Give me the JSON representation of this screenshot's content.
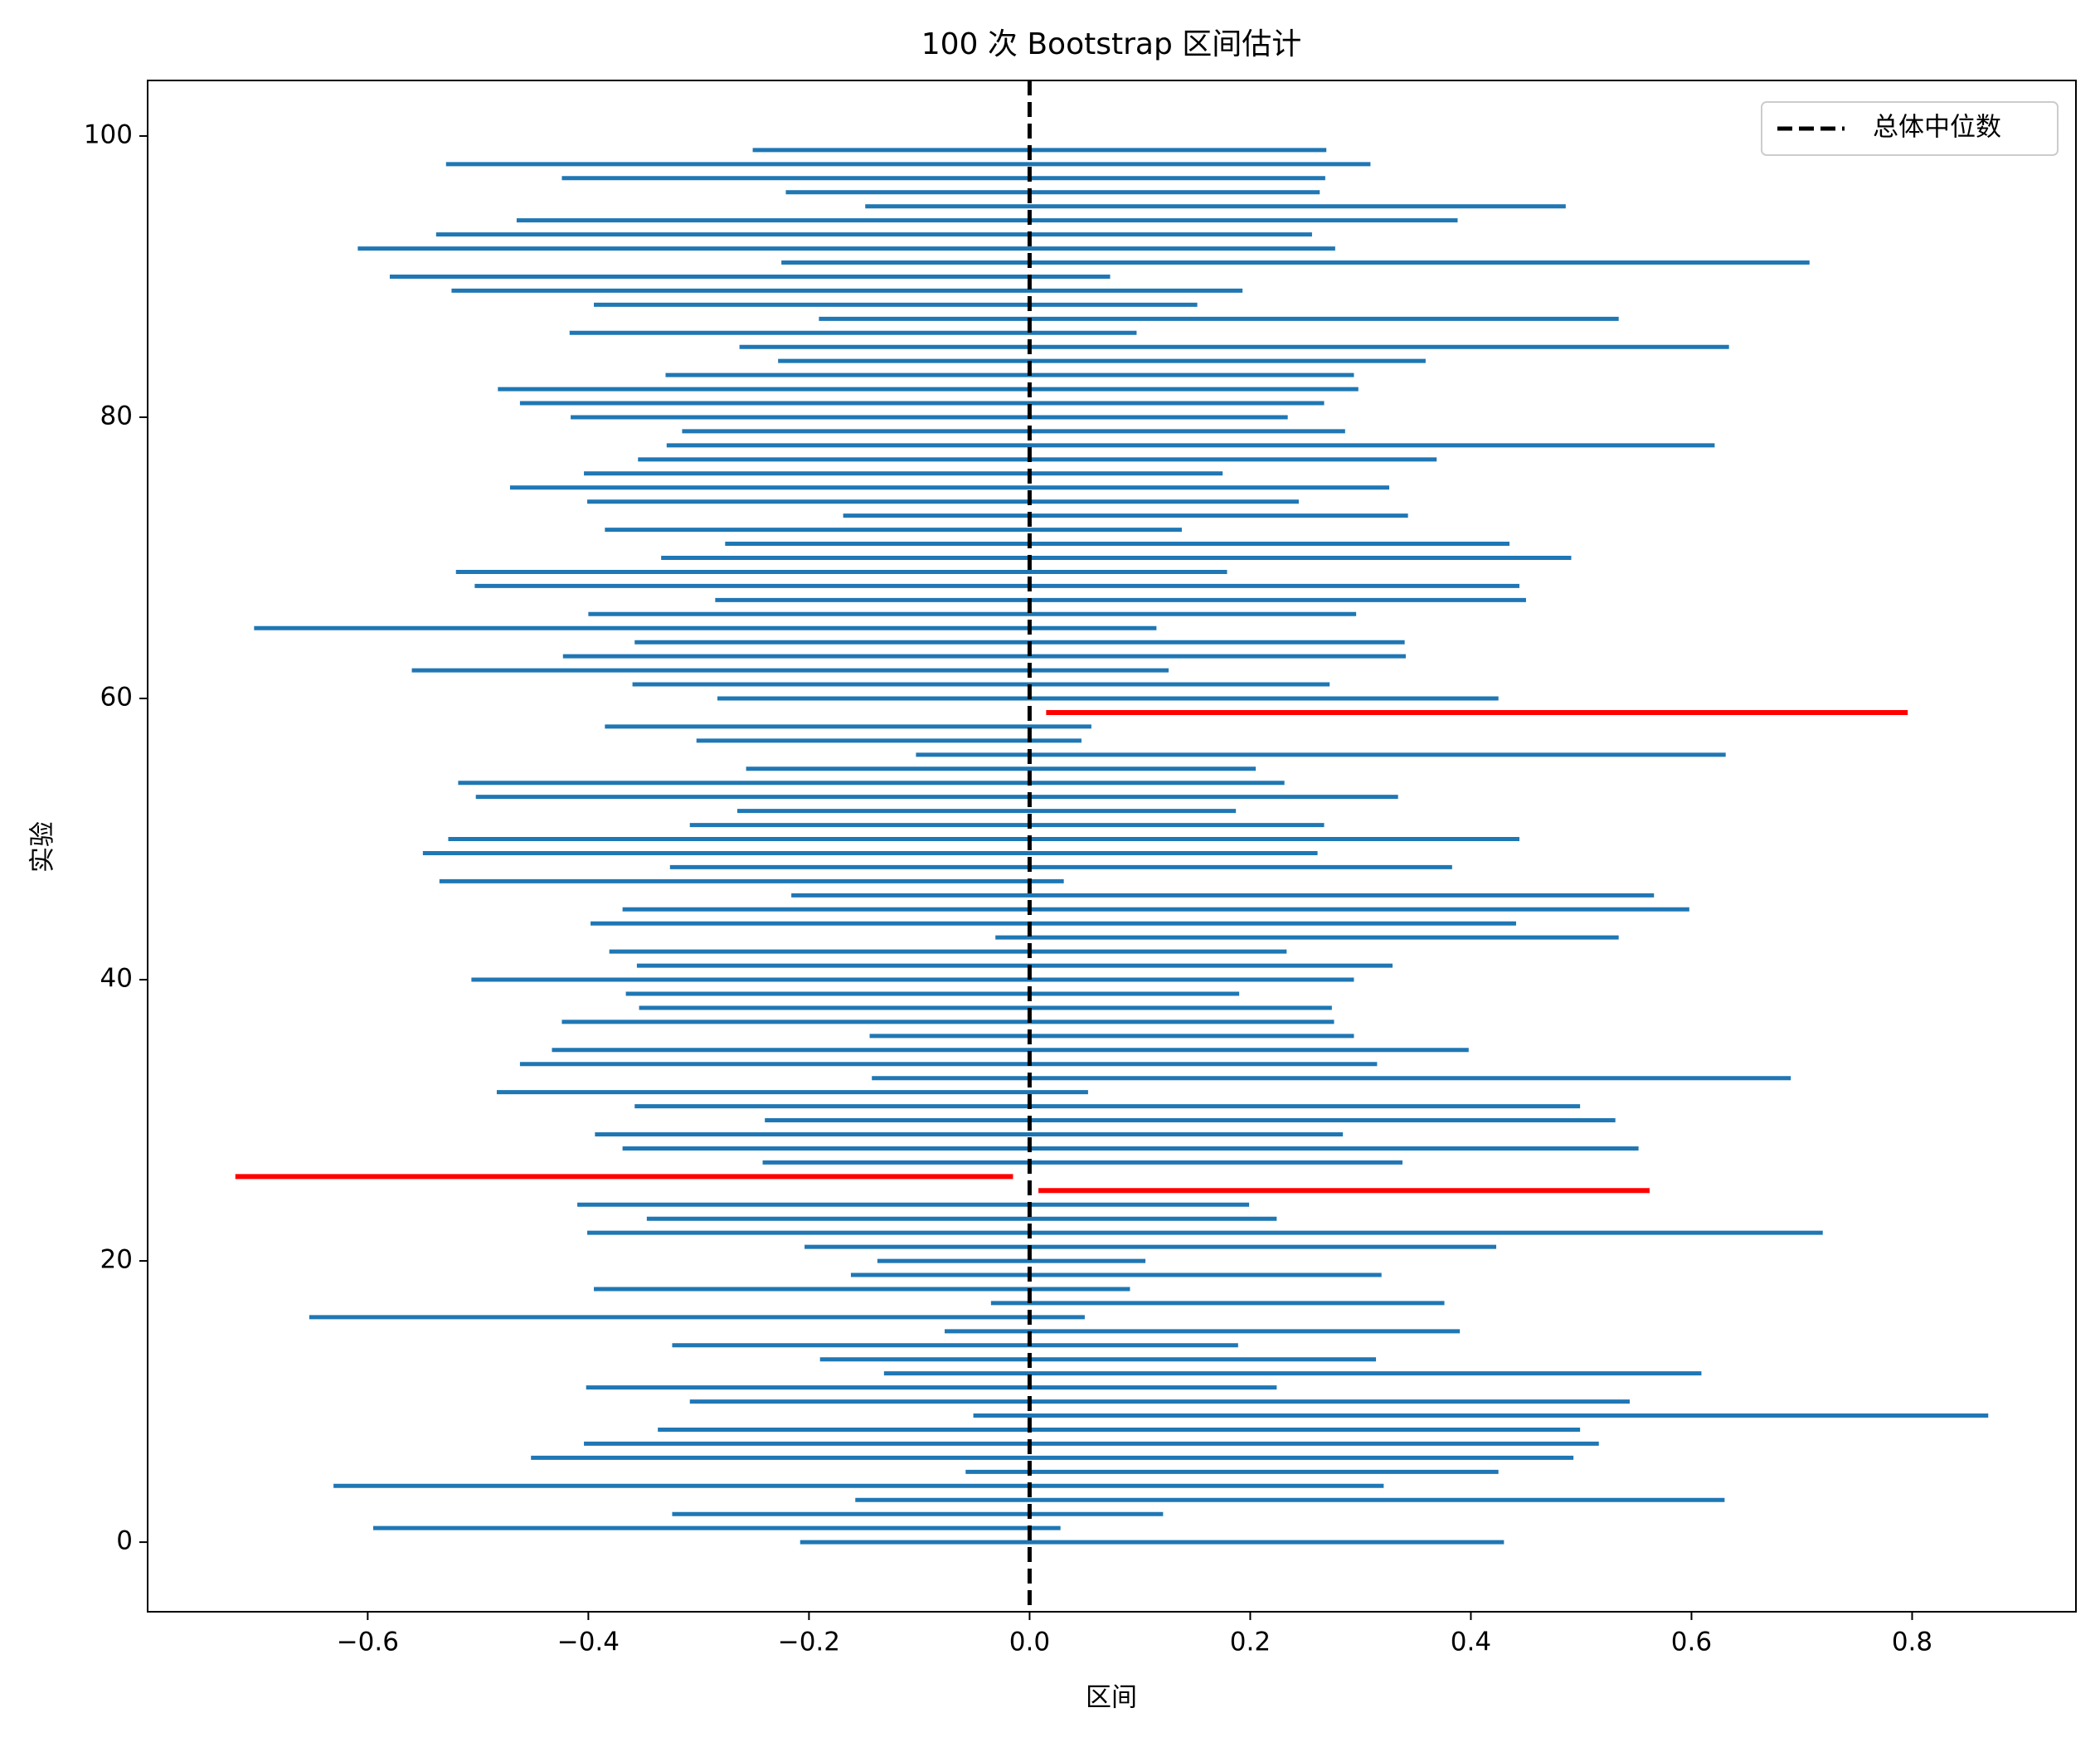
{
  "chart_data": {
    "type": "interval",
    "title": "100 次 Bootstrap 区间估计",
    "xlabel": "区间",
    "ylabel": "实验",
    "reference": 0,
    "reference_name": "总体中位数",
    "reference_color": "#000000",
    "color": "#1f77b4",
    "miss_color": "#ff0000",
    "legend": "upper right",
    "y": [
      0,
      1,
      2,
      3,
      4,
      5,
      6,
      7,
      8,
      9,
      10,
      11,
      12,
      13,
      14,
      15,
      16,
      17,
      18,
      19,
      20,
      21,
      22,
      23,
      24,
      25,
      26,
      27,
      28,
      29,
      30,
      31,
      32,
      33,
      34,
      35,
      36,
      37,
      38,
      39,
      40,
      41,
      42,
      43,
      44,
      45,
      46,
      47,
      48,
      49,
      50,
      51,
      52,
      53,
      54,
      55,
      56,
      57,
      58,
      59,
      60,
      61,
      62,
      63,
      64,
      65,
      66,
      67,
      68,
      69,
      70,
      71,
      72,
      73,
      74,
      75,
      76,
      77,
      78,
      79,
      80,
      81,
      82,
      83,
      84,
      85,
      86,
      87,
      88,
      89,
      90,
      91,
      92,
      93,
      94,
      95,
      96,
      97,
      98,
      99
    ],
    "lower": [
      -0.208,
      -0.595,
      -0.324,
      -0.158,
      -0.631,
      -0.058,
      -0.452,
      -0.404,
      -0.337,
      -0.051,
      -0.308,
      -0.402,
      -0.132,
      -0.19,
      -0.324,
      -0.077,
      -0.653,
      -0.035,
      -0.395,
      -0.162,
      -0.138,
      -0.204,
      -0.401,
      -0.347,
      -0.41,
      0.008,
      -0.72,
      -0.242,
      -0.369,
      -0.394,
      -0.24,
      -0.358,
      -0.483,
      -0.143,
      -0.462,
      -0.433,
      -0.145,
      -0.424,
      -0.354,
      -0.366,
      -0.506,
      -0.356,
      -0.381,
      -0.031,
      -0.398,
      -0.369,
      -0.216,
      -0.535,
      -0.326,
      -0.55,
      -0.527,
      -0.308,
      -0.265,
      -0.502,
      -0.518,
      -0.257,
      -0.103,
      -0.302,
      -0.385,
      0.015,
      -0.283,
      -0.36,
      -0.56,
      -0.423,
      -0.358,
      -0.703,
      -0.4,
      -0.285,
      -0.503,
      -0.52,
      -0.334,
      -0.276,
      -0.385,
      -0.169,
      -0.401,
      -0.471,
      -0.404,
      -0.355,
      -0.329,
      -0.315,
      -0.416,
      -0.462,
      -0.482,
      -0.33,
      -0.228,
      -0.263,
      -0.417,
      -0.191,
      -0.395,
      -0.524,
      -0.58,
      -0.225,
      -0.609,
      -0.538,
      -0.465,
      -0.149,
      -0.221,
      -0.424,
      -0.529,
      -0.251
    ],
    "upper": [
      0.43,
      0.028,
      0.121,
      0.63,
      0.321,
      0.425,
      0.493,
      0.516,
      0.499,
      0.869,
      0.544,
      0.224,
      0.609,
      0.314,
      0.189,
      0.39,
      0.05,
      0.376,
      0.091,
      0.319,
      0.105,
      0.423,
      0.719,
      0.224,
      0.199,
      0.562,
      -0.015,
      0.338,
      0.552,
      0.284,
      0.531,
      0.499,
      0.053,
      0.69,
      0.315,
      0.398,
      0.294,
      0.276,
      0.274,
      0.19,
      0.294,
      0.329,
      0.233,
      0.534,
      0.441,
      0.598,
      0.566,
      0.031,
      0.383,
      0.261,
      0.444,
      0.267,
      0.187,
      0.334,
      0.231,
      0.205,
      0.631,
      0.047,
      0.056,
      0.796,
      0.425,
      0.272,
      0.126,
      0.341,
      0.34,
      0.115,
      0.296,
      0.45,
      0.444,
      0.179,
      0.491,
      0.435,
      0.138,
      0.343,
      0.244,
      0.326,
      0.175,
      0.369,
      0.621,
      0.286,
      0.234,
      0.267,
      0.298,
      0.294,
      0.359,
      0.634,
      0.097,
      0.534,
      0.152,
      0.193,
      0.073,
      0.707,
      0.277,
      0.256,
      0.388,
      0.486,
      0.263,
      0.268,
      0.309,
      0.269
    ],
    "xlim": [
      -0.7995,
      0.9485
    ],
    "ylim": [
      -4.95,
      103.95
    ],
    "xticks": [
      {
        "value": -0.6,
        "label": "−0.6"
      },
      {
        "value": -0.4,
        "label": "−0.4"
      },
      {
        "value": -0.2,
        "label": "−0.2"
      },
      {
        "value": 0,
        "label": "0.0"
      },
      {
        "value": 0.2,
        "label": "0.2"
      },
      {
        "value": 0.4,
        "label": "0.4"
      },
      {
        "value": 0.6,
        "label": "0.6"
      },
      {
        "value": 0.8,
        "label": "0.8"
      }
    ],
    "yticks": [
      0,
      20,
      40,
      60,
      80,
      100
    ]
  }
}
